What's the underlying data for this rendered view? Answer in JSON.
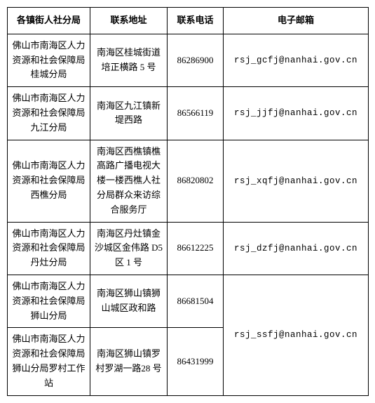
{
  "table": {
    "columns": [
      "各镇街人社分局",
      "联系地址",
      "联系电话",
      "电子邮箱"
    ],
    "rows": [
      {
        "name": "佛山市南海区人力资源和社会保障局桂城分局",
        "address": "南海区桂城街道培正横路 5 号",
        "phone": "86286900",
        "email": "rsj_gcfj@nanhai.gov.cn",
        "rowspan_email": 1
      },
      {
        "name": "佛山市南海区人力资源和社会保障局九江分局",
        "address": "南海区九江镇新堤西路",
        "phone": "86566119",
        "email": "rsj_jjfj@nanhai.gov.cn",
        "rowspan_email": 1
      },
      {
        "name": "佛山市南海区人力资源和社会保障局西樵分局",
        "address": "南海区西樵镇樵高路广播电视大楼一楼西樵人社分局群众来访综合服务厅",
        "phone": "86820802",
        "email": "rsj_xqfj@nanhai.gov.cn",
        "rowspan_email": 1
      },
      {
        "name": "佛山市南海区人力资源和社会保障局丹灶分局",
        "address": "南海区丹灶镇金沙城区金伟路 D5 区 1 号",
        "phone": "86612225",
        "email": "rsj_dzfj@nanhai.gov.cn",
        "rowspan_email": 1
      },
      {
        "name": "佛山市南海区人力资源和社会保障局狮山分局",
        "address": "南海区狮山镇狮山城区政和路",
        "phone": "86681504",
        "email": "rsj_ssfj@nanhai.gov.cn",
        "rowspan_email": 2
      },
      {
        "name": "佛山市南海区人力资源和社会保障局狮山分局罗村工作站",
        "address": "南海区狮山镇罗村罗湖一路28 号",
        "phone": "86431999",
        "email": null,
        "rowspan_email": 0
      }
    ]
  }
}
